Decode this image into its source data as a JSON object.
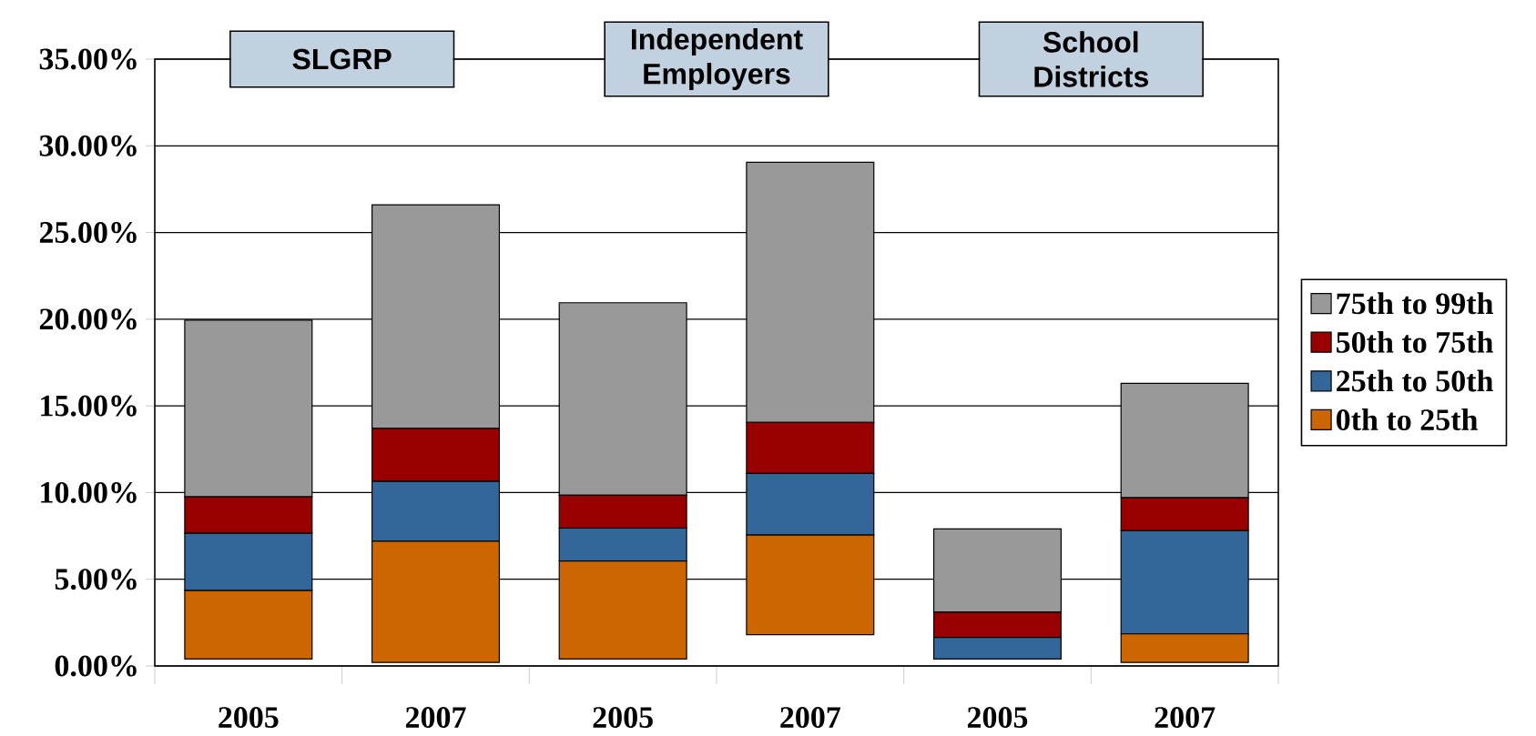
{
  "chart_data": {
    "type": "bar",
    "categories": [
      "2005",
      "2007",
      "2005",
      "2007",
      "2005",
      "2007"
    ],
    "series": [
      {
        "name": "0th to 25th",
        "color": "#cc6600",
        "base": [
          0.4,
          0.2,
          0.4,
          1.8,
          null,
          0.2
        ],
        "values": [
          3.95,
          7.0,
          5.65,
          5.75,
          null,
          1.65
        ]
      },
      {
        "name": "25th to 50th",
        "color": "#336699",
        "base": [
          4.35,
          7.2,
          6.05,
          7.55,
          0.4,
          1.85
        ],
        "values": [
          3.3,
          3.45,
          1.9,
          3.55,
          1.25,
          5.95
        ]
      },
      {
        "name": "50th to 75th",
        "color": "#990000",
        "base": [
          7.65,
          10.65,
          7.95,
          11.1,
          1.65,
          7.8
        ],
        "values": [
          2.1,
          3.05,
          1.9,
          2.95,
          1.45,
          1.9
        ]
      },
      {
        "name": "75th to 99th",
        "color": "#999999",
        "base": [
          9.75,
          13.7,
          9.85,
          14.05,
          3.1,
          9.7
        ],
        "values": [
          10.2,
          12.9,
          11.1,
          15.0,
          4.8,
          6.6
        ]
      }
    ],
    "ylim": [
      0,
      35
    ],
    "yticks": [
      {
        "value": 0,
        "label": "0.00%"
      },
      {
        "value": 5,
        "label": "5.00%"
      },
      {
        "value": 10,
        "label": "10.00%"
      },
      {
        "value": 15,
        "label": "15.00%"
      },
      {
        "value": 20,
        "label": "20.00%"
      },
      {
        "value": 25,
        "label": "25.00%"
      },
      {
        "value": 30,
        "label": "30.00%"
      },
      {
        "value": 35,
        "label": "35.00%"
      }
    ],
    "annotations": [
      "SLGRP",
      "Independent Employers",
      "School Districts"
    ],
    "grid": "y",
    "legend": "right"
  }
}
